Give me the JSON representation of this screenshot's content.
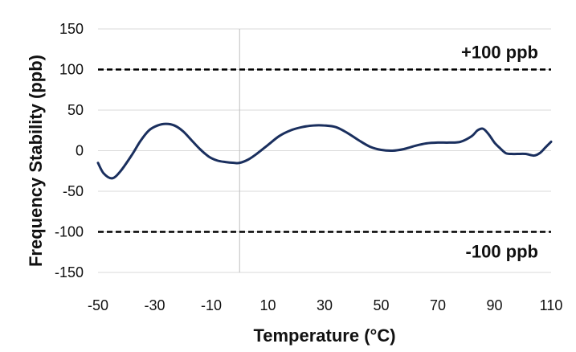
{
  "chart_data": {
    "type": "line",
    "title": "",
    "xlabel": "Temperature (°C)",
    "ylabel": "Frequency Stability (ppb)",
    "xlim": [
      -50,
      110
    ],
    "ylim": [
      -150,
      150
    ],
    "x_ticks": [
      -50,
      -30,
      -10,
      10,
      30,
      50,
      70,
      90,
      110
    ],
    "y_ticks": [
      150,
      100,
      50,
      0,
      -50,
      -100,
      -150
    ],
    "grid": {
      "horizontal": true,
      "vertical": false
    },
    "zero_line_x": 0,
    "reference_lines": [
      {
        "y": 100,
        "label": "+100 ppb",
        "style": "dashed"
      },
      {
        "y": -100,
        "label": "-100 ppb",
        "style": "dashed"
      }
    ],
    "series": [
      {
        "color": "#1a2f5e",
        "points": [
          [
            -50,
            -15
          ],
          [
            -48,
            -28
          ],
          [
            -45,
            -34
          ],
          [
            -42,
            -25
          ],
          [
            -38,
            -5
          ],
          [
            -35,
            12
          ],
          [
            -32,
            25
          ],
          [
            -29,
            31
          ],
          [
            -26,
            33
          ],
          [
            -23,
            31
          ],
          [
            -20,
            24
          ],
          [
            -17,
            13
          ],
          [
            -14,
            2
          ],
          [
            -11,
            -7
          ],
          [
            -8,
            -12
          ],
          [
            -5,
            -14
          ],
          [
            -2,
            -15
          ],
          [
            0,
            -15
          ],
          [
            3,
            -11
          ],
          [
            6,
            -4
          ],
          [
            10,
            7
          ],
          [
            14,
            18
          ],
          [
            18,
            25
          ],
          [
            22,
            29
          ],
          [
            26,
            31
          ],
          [
            30,
            31
          ],
          [
            34,
            29
          ],
          [
            38,
            22
          ],
          [
            42,
            13
          ],
          [
            46,
            5
          ],
          [
            50,
            1
          ],
          [
            54,
            0
          ],
          [
            58,
            2
          ],
          [
            62,
            6
          ],
          [
            66,
            9
          ],
          [
            70,
            10
          ],
          [
            74,
            10
          ],
          [
            78,
            11
          ],
          [
            82,
            18
          ],
          [
            84,
            25
          ],
          [
            86,
            27
          ],
          [
            88,
            20
          ],
          [
            90,
            10
          ],
          [
            92,
            3
          ],
          [
            94,
            -3
          ],
          [
            96,
            -4
          ],
          [
            98,
            -4
          ],
          [
            101,
            -4
          ],
          [
            104,
            -6
          ],
          [
            106,
            -3
          ],
          [
            108,
            4
          ],
          [
            110,
            11
          ]
        ]
      }
    ]
  }
}
